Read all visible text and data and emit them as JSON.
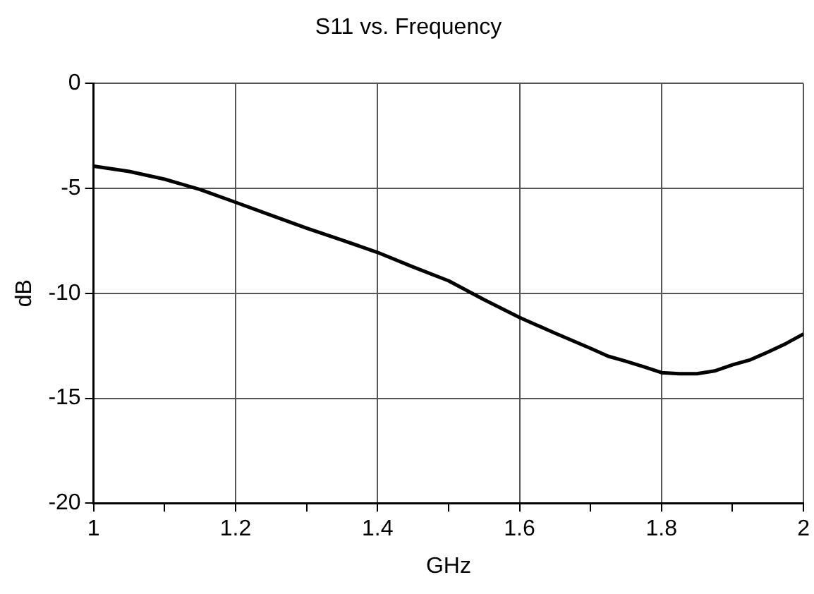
{
  "chart_data": {
    "type": "line",
    "title": "S11 vs. Frequency",
    "xlabel": "GHz",
    "ylabel": "dB",
    "x": [
      1.0,
      1.05,
      1.1,
      1.15,
      1.2,
      1.25,
      1.3,
      1.35,
      1.4,
      1.45,
      1.5,
      1.55,
      1.6,
      1.65,
      1.7,
      1.725,
      1.75,
      1.775,
      1.8,
      1.825,
      1.85,
      1.875,
      1.9,
      1.925,
      1.95,
      1.975,
      2.0
    ],
    "series": [
      {
        "color": "#000000",
        "values": [
          -3.94,
          -4.19,
          -4.56,
          -5.05,
          -5.66,
          -6.28,
          -6.89,
          -7.46,
          -8.05,
          -8.74,
          -9.4,
          -10.3,
          -11.15,
          -11.9,
          -12.62,
          -13.0,
          -13.24,
          -13.5,
          -13.78,
          -13.83,
          -13.83,
          -13.7,
          -13.41,
          -13.17,
          -12.8,
          -12.4,
          -11.94
        ]
      }
    ],
    "xlim": [
      1,
      2
    ],
    "xticks": [
      1,
      {
        "value": 1.1,
        "label": null
      },
      1.2,
      {
        "value": 1.3,
        "label": null
      },
      1.4,
      {
        "value": 1.5,
        "label": null
      },
      1.6,
      {
        "value": 1.7,
        "label": null
      },
      1.8,
      {
        "value": 1.9,
        "label": null
      },
      2
    ],
    "ylim": [
      -20,
      0
    ],
    "yticks": [
      -20,
      -15,
      -10,
      -5,
      0
    ],
    "grid": true,
    "legend": false,
    "marker": "none",
    "line_style": "solid"
  }
}
